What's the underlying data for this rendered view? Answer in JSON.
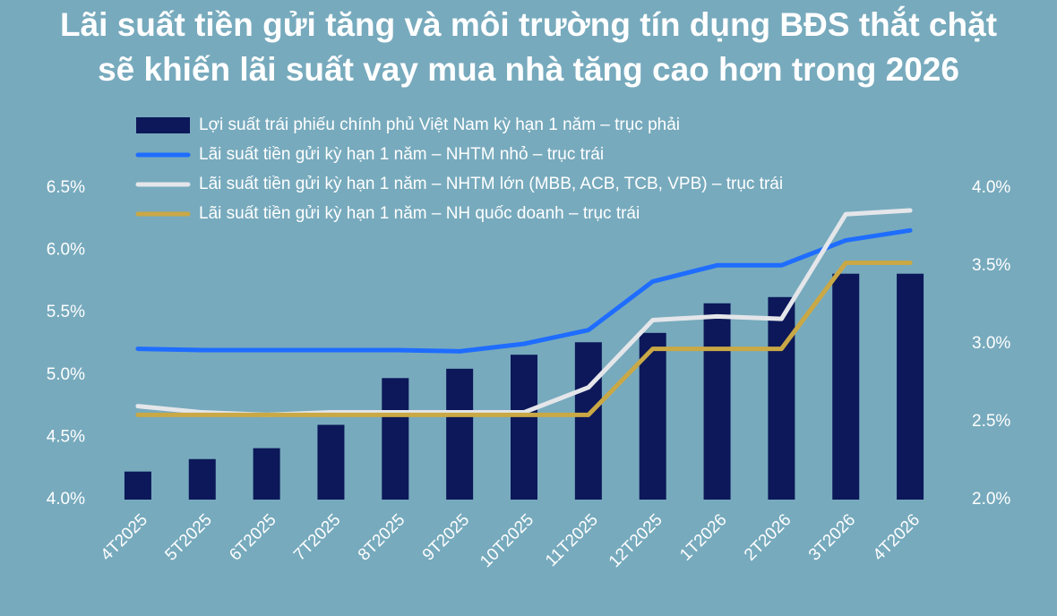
{
  "chart_data": {
    "type": "bar_line",
    "title": [
      "Lãi suất tiền gửi tăng và môi trường tín dụng BĐS thắt chặt",
      "sẽ khiến lãi suất vay mua nhà tăng cao hơn trong 2026"
    ],
    "categories": [
      "4T2025",
      "5T2025",
      "6T2025",
      "7T2025",
      "8T2025",
      "9T2025",
      "10T2025",
      "11T2025",
      "12T2025",
      "1T2026",
      "2T2026",
      "3T2026",
      "4T2026"
    ],
    "series": [
      {
        "name": "Lợi suất trái phiếu chính phủ Việt Nam kỳ hạn 1 năm – trục phải",
        "type": "bar",
        "axis": "y2",
        "color": "#0c1859",
        "values": [
          2.18,
          2.26,
          2.33,
          2.48,
          2.78,
          2.84,
          2.93,
          3.01,
          3.07,
          3.26,
          3.3,
          3.45,
          3.45
        ]
      },
      {
        "name": "Lãi suất tiền gửi kỳ hạn 1 năm – NHTM nhỏ – trục trái",
        "type": "line",
        "axis": "y",
        "color": "#1f6dff",
        "values": [
          5.21,
          5.2,
          5.2,
          5.2,
          5.2,
          5.19,
          5.25,
          5.36,
          5.75,
          5.88,
          5.88,
          6.08,
          6.16
        ]
      },
      {
        "name": "Lãi suất tiền gửi kỳ hạn 1 năm – NHTM lớn (MBB, ACB, TCB, VPB) – trục trái",
        "type": "line",
        "axis": "y",
        "color": "#e4e6ea",
        "values": [
          4.75,
          4.7,
          4.68,
          4.7,
          4.7,
          4.7,
          4.7,
          4.9,
          5.44,
          5.47,
          5.45,
          6.29,
          6.32
        ]
      },
      {
        "name": "Lãi suất tiền gửi kỳ hạn 1 năm – NH quốc doanh – trục trái",
        "type": "line",
        "axis": "y",
        "color": "#c9a845",
        "values": [
          4.68,
          4.68,
          4.68,
          4.68,
          4.68,
          4.68,
          4.68,
          4.68,
          5.21,
          5.21,
          5.21,
          5.9,
          5.9
        ]
      }
    ],
    "ylim": [
      4.0,
      6.5
    ],
    "yticks": [
      {
        "value": 4.0,
        "label": "4.0%"
      },
      {
        "value": 4.5,
        "label": "4.5%"
      },
      {
        "value": 5.0,
        "label": "5.0%"
      },
      {
        "value": 5.5,
        "label": "5.5%"
      },
      {
        "value": 6.0,
        "label": "6.0%"
      },
      {
        "value": 6.5,
        "label": "6.5%"
      }
    ],
    "y2lim": [
      2.0,
      4.0
    ],
    "y2ticks": [
      {
        "value": 2.0,
        "label": "2.0%"
      },
      {
        "value": 2.5,
        "label": "2.5%"
      },
      {
        "value": 3.0,
        "label": "3.0%"
      },
      {
        "value": 3.5,
        "label": "3.5%"
      },
      {
        "value": 4.0,
        "label": "4.0%"
      }
    ],
    "grid": false
  }
}
